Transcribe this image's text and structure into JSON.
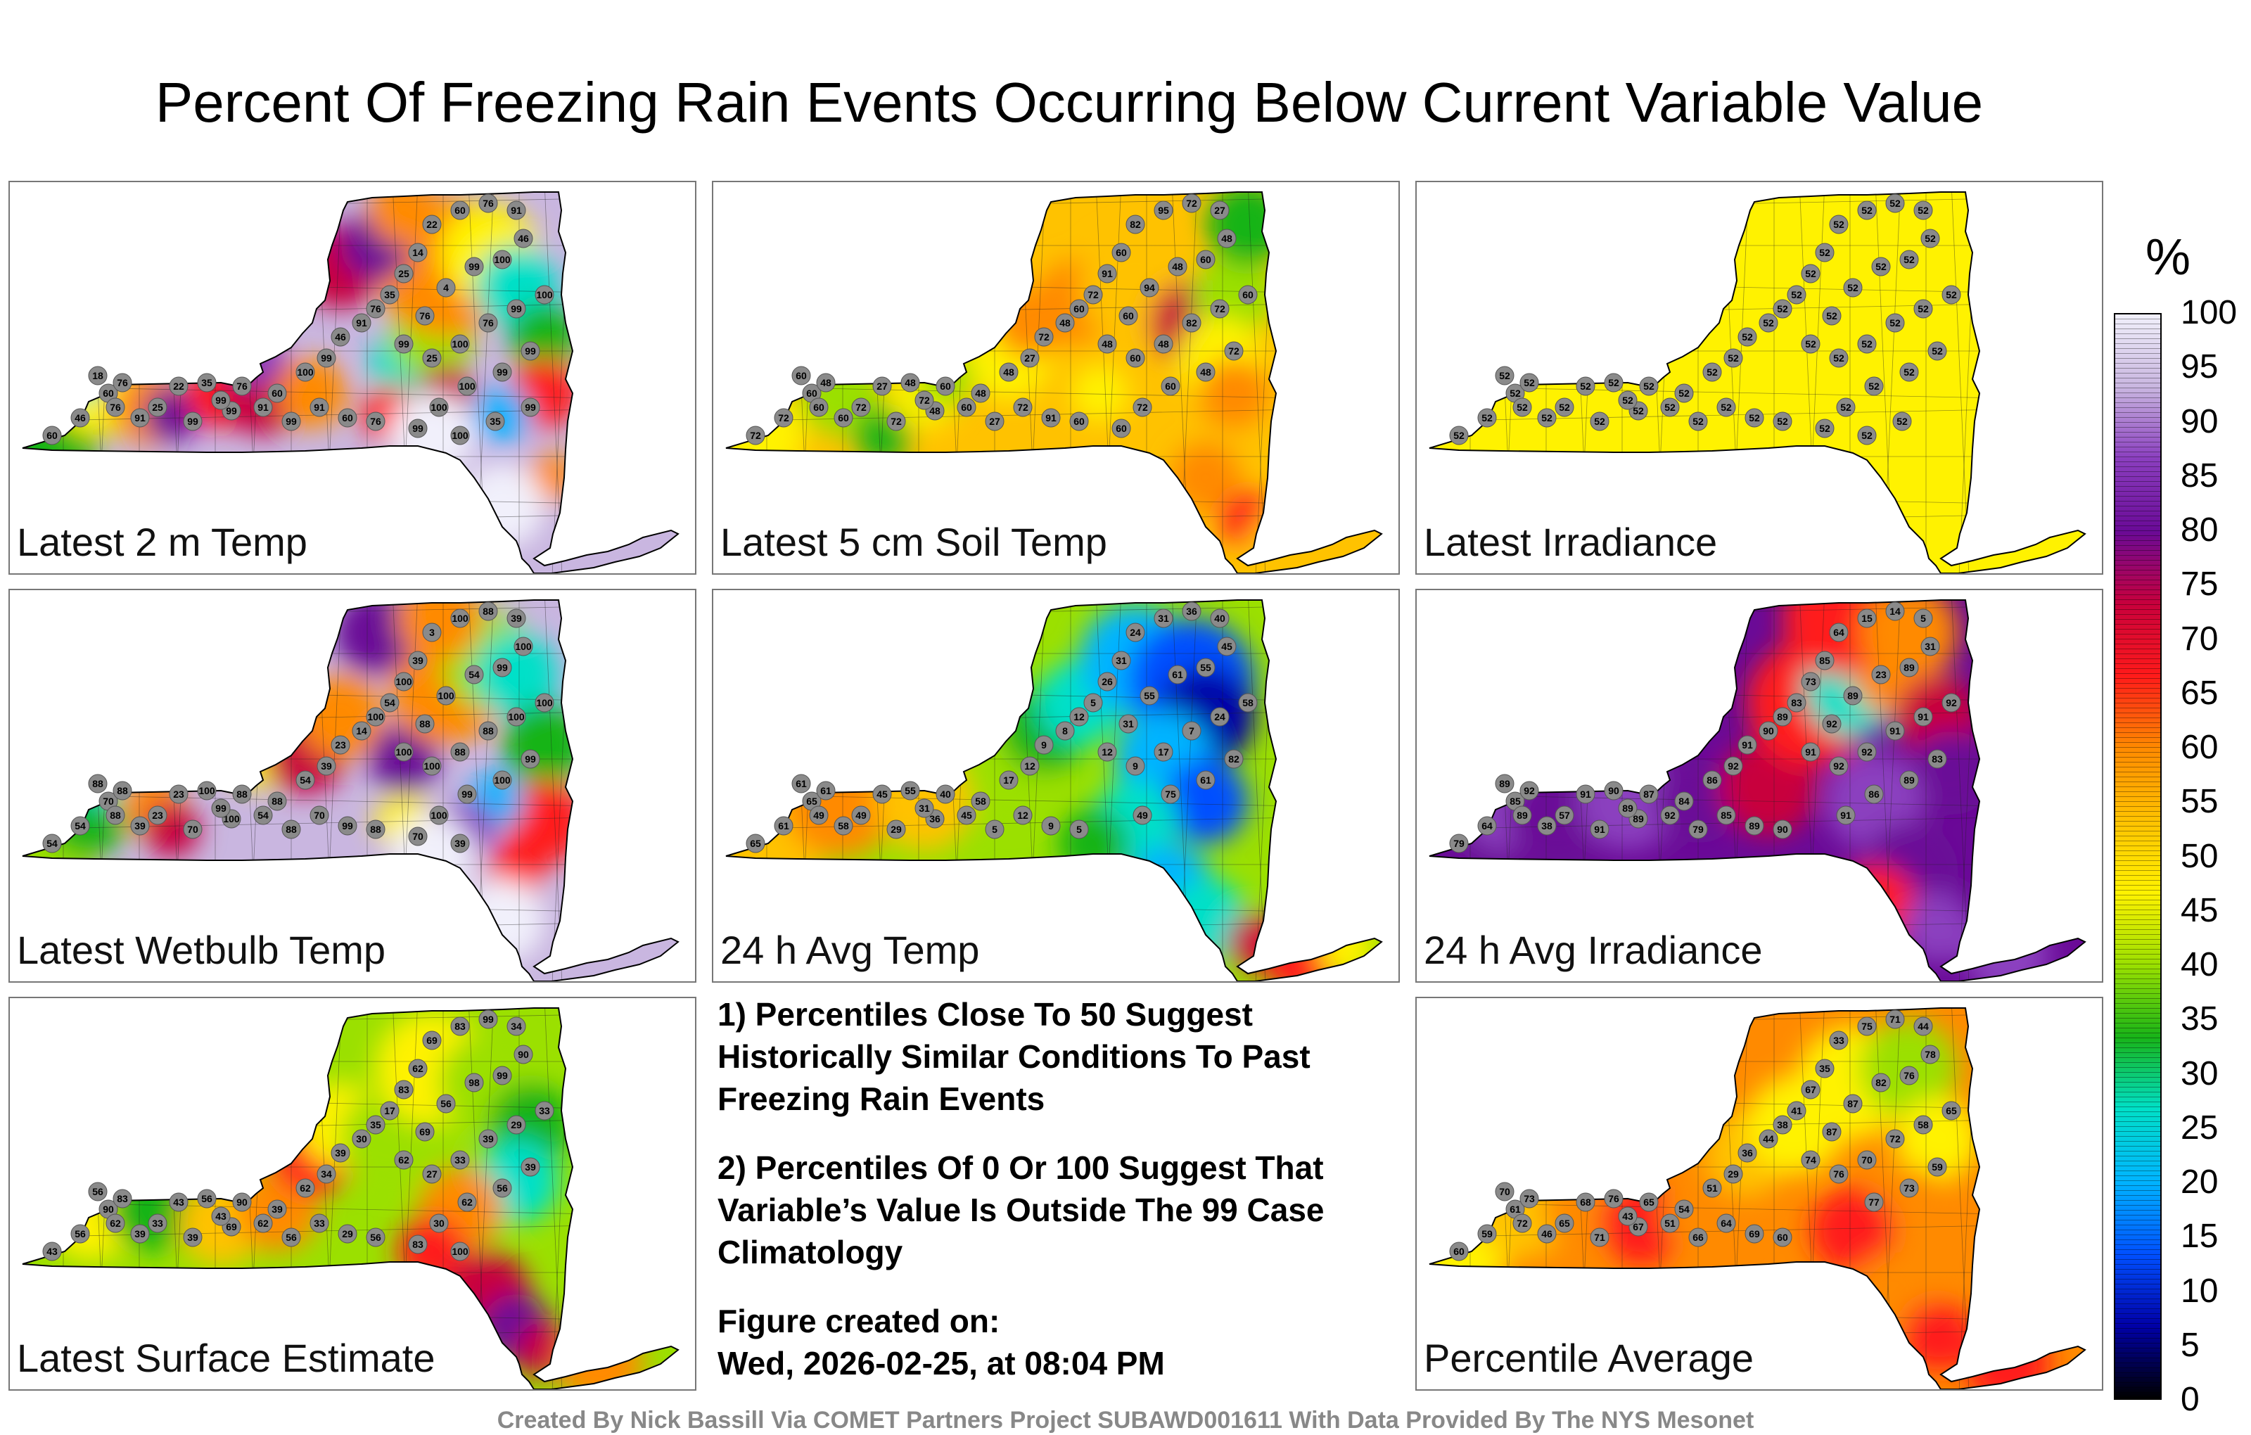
{
  "title": "Percent Of Freezing Rain Events Occurring Below Current Variable Value",
  "colorbar": {
    "unit": "%",
    "ticks": [
      "100",
      "95",
      "90",
      "85",
      "80",
      "75",
      "70",
      "65",
      "60",
      "55",
      "50",
      "45",
      "40",
      "35",
      "30",
      "25",
      "20",
      "15",
      "10",
      "5",
      "0"
    ],
    "colors": [
      "#f1f0fb",
      "#c9b6e0",
      "#8b3fbf",
      "#6a0a97",
      "#c8003c",
      "#ff1a1a",
      "#ff8a00",
      "#ffc200",
      "#fff200",
      "#9be000",
      "#18b418",
      "#00e0c8",
      "#00b4ff",
      "#0050ff",
      "#0000a8",
      "#000000"
    ]
  },
  "panels": [
    {
      "label": "Latest 2 m Temp",
      "pattern": "temp2m",
      "base": "#c9b6e0",
      "stations": [
        "60",
        "46",
        "60",
        "91",
        "25",
        "18",
        "76",
        "22",
        "35",
        "76",
        "99",
        "99",
        "76",
        "99",
        "91",
        "60",
        "99",
        "91",
        "60",
        "76",
        "100",
        "99",
        "46",
        "91",
        "76",
        "35",
        "25",
        "14",
        "22",
        "60",
        "76",
        "91",
        "46",
        "100",
        "99",
        "4",
        "76",
        "99",
        "25",
        "100",
        "76",
        "99",
        "100",
        "99",
        "99",
        "100",
        "100",
        "99",
        "100",
        "35",
        "99"
      ]
    },
    {
      "label": "Latest 5 cm Soil Temp",
      "pattern": "soil",
      "base": "#ffc200",
      "stations": [
        "72",
        "72",
        "60",
        "60",
        "72",
        "60",
        "48",
        "27",
        "48",
        "60",
        "72",
        "48",
        "60",
        "72",
        "60",
        "48",
        "27",
        "72",
        "91",
        "60",
        "48",
        "27",
        "72",
        "48",
        "60",
        "72",
        "91",
        "60",
        "82",
        "95",
        "72",
        "27",
        "48",
        "60",
        "48",
        "94",
        "60",
        "48",
        "60",
        "48",
        "82",
        "72",
        "60",
        "72",
        "48",
        "60",
        "72",
        "60"
      ]
    },
    {
      "label": "Latest Irradiance",
      "pattern": "irr",
      "base": "#fff200",
      "stations": [
        "52",
        "52",
        "52",
        "52",
        "52",
        "52",
        "52",
        "52",
        "52",
        "52",
        "52",
        "52",
        "52",
        "52",
        "52",
        "52",
        "52",
        "52",
        "52",
        "52",
        "52",
        "52",
        "52",
        "52",
        "52",
        "52",
        "52",
        "52",
        "52",
        "52",
        "52",
        "52",
        "52",
        "52",
        "52",
        "52",
        "52",
        "52",
        "52",
        "52",
        "52",
        "52",
        "52",
        "52",
        "52",
        "52",
        "52",
        "52",
        "52",
        "52"
      ]
    },
    {
      "label": "Latest Wetbulb Temp",
      "pattern": "wetbulb",
      "base": "#c9b6e0",
      "stations": [
        "54",
        "54",
        "70",
        "39",
        "23",
        "88",
        "88",
        "23",
        "100",
        "88",
        "70",
        "100",
        "88",
        "99",
        "54",
        "88",
        "88",
        "70",
        "99",
        "88",
        "54",
        "39",
        "23",
        "14",
        "100",
        "54",
        "100",
        "39",
        "3",
        "100",
        "88",
        "39",
        "100",
        "99",
        "54",
        "100",
        "88",
        "100",
        "100",
        "88",
        "88",
        "100",
        "100",
        "99",
        "100",
        "99",
        "100",
        "70",
        "39"
      ]
    },
    {
      "label": "24 h Avg Temp",
      "pattern": "avgtemp",
      "base": "#9be000",
      "stations": [
        "65",
        "61",
        "65",
        "58",
        "49",
        "61",
        "61",
        "45",
        "55",
        "49",
        "29",
        "36",
        "40",
        "31",
        "45",
        "58",
        "5",
        "12",
        "9",
        "5",
        "17",
        "12",
        "9",
        "8",
        "12",
        "5",
        "26",
        "31",
        "24",
        "31",
        "36",
        "40",
        "45",
        "55",
        "61",
        "55",
        "31",
        "12",
        "9",
        "17",
        "7",
        "24",
        "58",
        "82",
        "61",
        "75",
        "49"
      ]
    },
    {
      "label": "24 h Avg Irradiance",
      "pattern": "avgirr",
      "base": "#6a0a97",
      "stations": [
        "79",
        "64",
        "85",
        "38",
        "57",
        "89",
        "92",
        "91",
        "90",
        "89",
        "91",
        "89",
        "87",
        "89",
        "92",
        "84",
        "79",
        "85",
        "89",
        "90",
        "86",
        "92",
        "91",
        "90",
        "89",
        "83",
        "73",
        "85",
        "64",
        "15",
        "14",
        "5",
        "31",
        "89",
        "23",
        "89",
        "92",
        "91",
        "92",
        "92",
        "91",
        "91",
        "92",
        "83",
        "89",
        "86",
        "91"
      ]
    },
    {
      "label": "Latest Surface Estimate",
      "pattern": "sfc",
      "base": "#9be000",
      "stations": [
        "43",
        "56",
        "90",
        "39",
        "33",
        "56",
        "83",
        "43",
        "56",
        "62",
        "39",
        "69",
        "90",
        "43",
        "62",
        "39",
        "56",
        "33",
        "29",
        "56",
        "62",
        "34",
        "39",
        "30",
        "35",
        "17",
        "83",
        "62",
        "69",
        "83",
        "99",
        "34",
        "90",
        "99",
        "98",
        "56",
        "69",
        "62",
        "27",
        "33",
        "39",
        "29",
        "33",
        "39",
        "56",
        "62",
        "30",
        "83",
        "100"
      ]
    },
    {
      "label": "Percentile Average",
      "pattern": "pavg",
      "base": "#ff8a00",
      "stations": [
        "60",
        "59",
        "61",
        "46",
        "65",
        "70",
        "73",
        "68",
        "76",
        "72",
        "71",
        "67",
        "65",
        "43",
        "51",
        "54",
        "66",
        "64",
        "69",
        "60",
        "51",
        "29",
        "36",
        "44",
        "38",
        "41",
        "67",
        "35",
        "33",
        "75",
        "71",
        "44",
        "78",
        "76",
        "82",
        "87",
        "87",
        "74",
        "76",
        "70",
        "72",
        "58",
        "65",
        "59",
        "73",
        "77"
      ]
    }
  ],
  "notes": [
    "1) Percentiles Close To 50 Suggest Historically Similar Conditions To Past Freezing Rain Events",
    "2) Percentiles Of 0 Or 100 Suggest That Variable’s Value Is Outside The 99 Case Climatology"
  ],
  "created_label": "Figure created on:",
  "created_value": "Wed, 2026-02-25, at 08:04 PM",
  "footer": "Created By Nick Bassill Via COMET Partners Project SUBAWD001611 With Data Provided By The NYS Mesonet"
}
